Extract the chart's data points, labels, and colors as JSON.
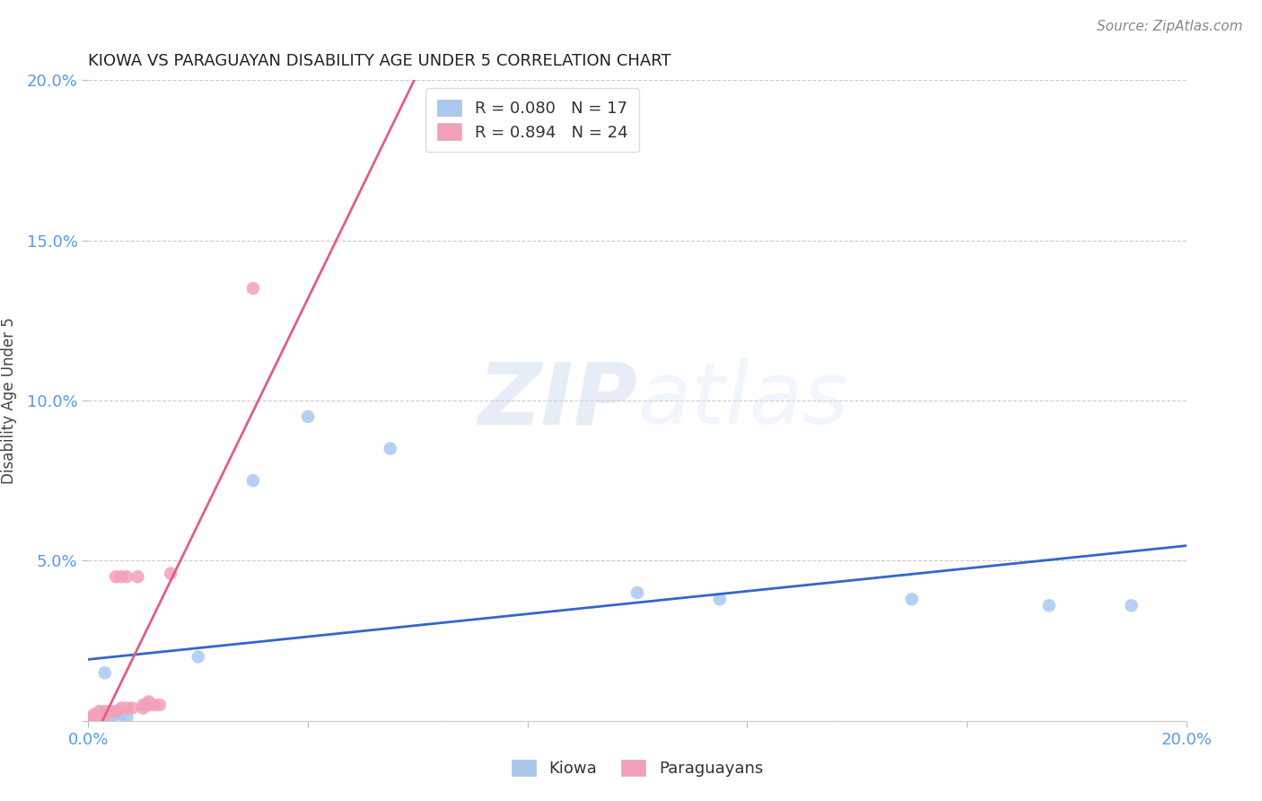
{
  "title": "KIOWA VS PARAGUAYAN DISABILITY AGE UNDER 5 CORRELATION CHART",
  "source": "Source: ZipAtlas.com",
  "ylabel": "Disability Age Under 5",
  "xlim": [
    0.0,
    0.2
  ],
  "ylim": [
    0.0,
    0.2
  ],
  "kiowa_R": 0.08,
  "kiowa_N": 17,
  "paraguayan_R": 0.894,
  "paraguayan_N": 24,
  "kiowa_color": "#a8c8f0",
  "paraguayan_color": "#f4a0b8",
  "kiowa_line_color": "#3366cc",
  "paraguayan_line_color": "#e06080",
  "watermark_zip": "ZIP",
  "watermark_atlas": "atlas",
  "kiowa_x": [
    0.001,
    0.002,
    0.003,
    0.004,
    0.005,
    0.006,
    0.007,
    0.02,
    0.03,
    0.04,
    0.055,
    0.1,
    0.115,
    0.15,
    0.175,
    0.19,
    0.003
  ],
  "kiowa_y": [
    0.001,
    0.001,
    0.001,
    0.001,
    0.002,
    0.002,
    0.001,
    0.02,
    0.075,
    0.095,
    0.085,
    0.04,
    0.038,
    0.038,
    0.036,
    0.036,
    0.015
  ],
  "paraguayan_x": [
    0.0,
    0.001,
    0.001,
    0.002,
    0.002,
    0.003,
    0.003,
    0.004,
    0.005,
    0.005,
    0.006,
    0.006,
    0.007,
    0.007,
    0.008,
    0.009,
    0.01,
    0.01,
    0.011,
    0.011,
    0.012,
    0.013,
    0.015,
    0.03
  ],
  "paraguayan_y": [
    0.0,
    0.001,
    0.002,
    0.001,
    0.003,
    0.002,
    0.003,
    0.003,
    0.003,
    0.045,
    0.045,
    0.004,
    0.045,
    0.004,
    0.004,
    0.045,
    0.004,
    0.005,
    0.005,
    0.006,
    0.005,
    0.005,
    0.046,
    0.135
  ],
  "background_color": "#ffffff",
  "grid_color": "#cccccc"
}
